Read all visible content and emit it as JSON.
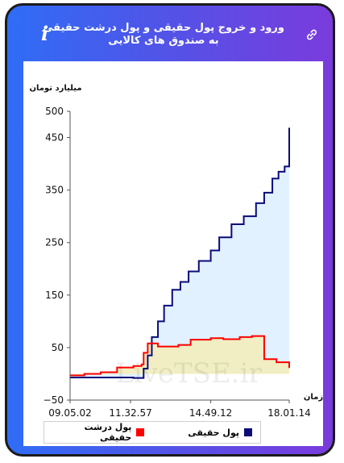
{
  "header": {
    "title": "ورود و خروج پول حقیقی و پول درشت حقیقی به صندوق های کالایی",
    "info_icon_glyph": "i",
    "info_icon": "info-icon",
    "link_icon": "link-icon"
  },
  "watermark": "LiveTSE.ir",
  "colors": {
    "real_money": "#0b0b7a",
    "real_money_fill": "#dcefff",
    "big_real_money": "#ff0000",
    "big_real_money_fill": "#f2edbb"
  },
  "chart_data": {
    "type": "area",
    "ylabel": "میلیارد تومان",
    "xlabel": "زمان",
    "ylim": [
      -50,
      500
    ],
    "yticks": [
      "500",
      "450",
      "350",
      "250",
      "150",
      "50",
      "−50"
    ],
    "ytick_values": [
      500,
      450,
      350,
      250,
      150,
      50,
      -50
    ],
    "xticks": [
      "09.05.02",
      "11.32.57",
      "14.49.12",
      "18.01.14"
    ],
    "xtick_times": [
      "09.05.02",
      "11.32.57",
      "14.49.12",
      "18.01.14"
    ],
    "grid": false,
    "legend_position": "bottom",
    "series": [
      {
        "name": "پول حقیقی",
        "color": "#0b0b7a",
        "x": [
          "09.05.02",
          "09.40.00",
          "10.20.00",
          "11.00.00",
          "11.40.00",
          "12.00.00",
          "12.05.00",
          "12.15.00",
          "12.25.00",
          "12.40.00",
          "12.55.00",
          "13.15.00",
          "13.35.00",
          "13.55.00",
          "14.20.00",
          "14.49.12",
          "15.10.00",
          "15.40.00",
          "16.10.00",
          "16.40.00",
          "17.00.00",
          "17.20.00",
          "17.35.00",
          "17.50.00",
          "18.01.14"
        ],
        "values": [
          -7,
          -7,
          -7,
          -7,
          -8,
          -8,
          10,
          35,
          70,
          100,
          130,
          160,
          175,
          195,
          215,
          235,
          260,
          285,
          300,
          325,
          345,
          372,
          385,
          395,
          468
        ]
      },
      {
        "name": "پول درشت حقیقی",
        "color": "#ff0000",
        "x": [
          "09.05.02",
          "09.40.00",
          "10.20.00",
          "11.00.00",
          "11.40.00",
          "12.00.00",
          "12.05.00",
          "12.15.00",
          "12.40.00",
          "13.30.00",
          "14.00.00",
          "14.49.12",
          "15.20.00",
          "16.00.00",
          "16.30.00",
          "17.00.00",
          "17.30.00",
          "18.01.14"
        ],
        "values": [
          -3,
          0,
          3,
          12,
          15,
          18,
          40,
          58,
          52,
          55,
          65,
          68,
          66,
          70,
          72,
          28,
          22,
          12
        ]
      }
    ]
  },
  "legend": {
    "items": [
      {
        "label": "پول حقیقی",
        "color": "#0b0b7a"
      },
      {
        "label": "پول درشت حقیقی",
        "color": "#ff0000"
      }
    ]
  }
}
